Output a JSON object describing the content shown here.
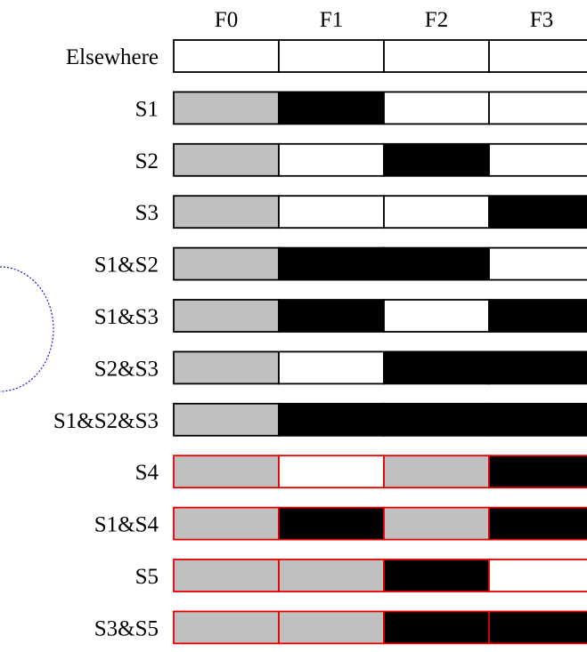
{
  "columns": [
    "F0",
    "F1",
    "F2",
    "F3"
  ],
  "rows": [
    {
      "label": "Elsewhere",
      "cells": [
        "white",
        "white",
        "white",
        "white"
      ],
      "border": "black"
    },
    {
      "label": "S1",
      "cells": [
        "gray",
        "black",
        "white",
        "white"
      ],
      "border": "black"
    },
    {
      "label": "S2",
      "cells": [
        "gray",
        "white",
        "black",
        "white"
      ],
      "border": "black"
    },
    {
      "label": "S3",
      "cells": [
        "gray",
        "white",
        "white",
        "black"
      ],
      "border": "black"
    },
    {
      "label": "S1&S2",
      "cells": [
        "gray",
        "black",
        "black",
        "white"
      ],
      "border": "black"
    },
    {
      "label": "S1&S3",
      "cells": [
        "gray",
        "black",
        "white",
        "black"
      ],
      "border": "black"
    },
    {
      "label": "S2&S3",
      "cells": [
        "gray",
        "white",
        "black",
        "black"
      ],
      "border": "black"
    },
    {
      "label": "S1&S2&S3",
      "cells": [
        "gray",
        "black",
        "black",
        "black"
      ],
      "border": "black"
    },
    {
      "label": "S4",
      "cells": [
        "gray",
        "white",
        "gray",
        "black"
      ],
      "border": "red"
    },
    {
      "label": "S1&S4",
      "cells": [
        "gray",
        "black",
        "gray",
        "black"
      ],
      "border": "red"
    },
    {
      "label": "S5",
      "cells": [
        "gray",
        "gray",
        "black",
        "white"
      ],
      "border": "red"
    },
    {
      "label": "S3&S5",
      "cells": [
        "gray",
        "gray",
        "black",
        "black"
      ],
      "border": "red"
    }
  ],
  "colors": {
    "white": "#ffffff",
    "gray": "#c0c0c0",
    "black": "#000000",
    "red": "#e00000",
    "dotted_arc": "#1a1acc"
  }
}
